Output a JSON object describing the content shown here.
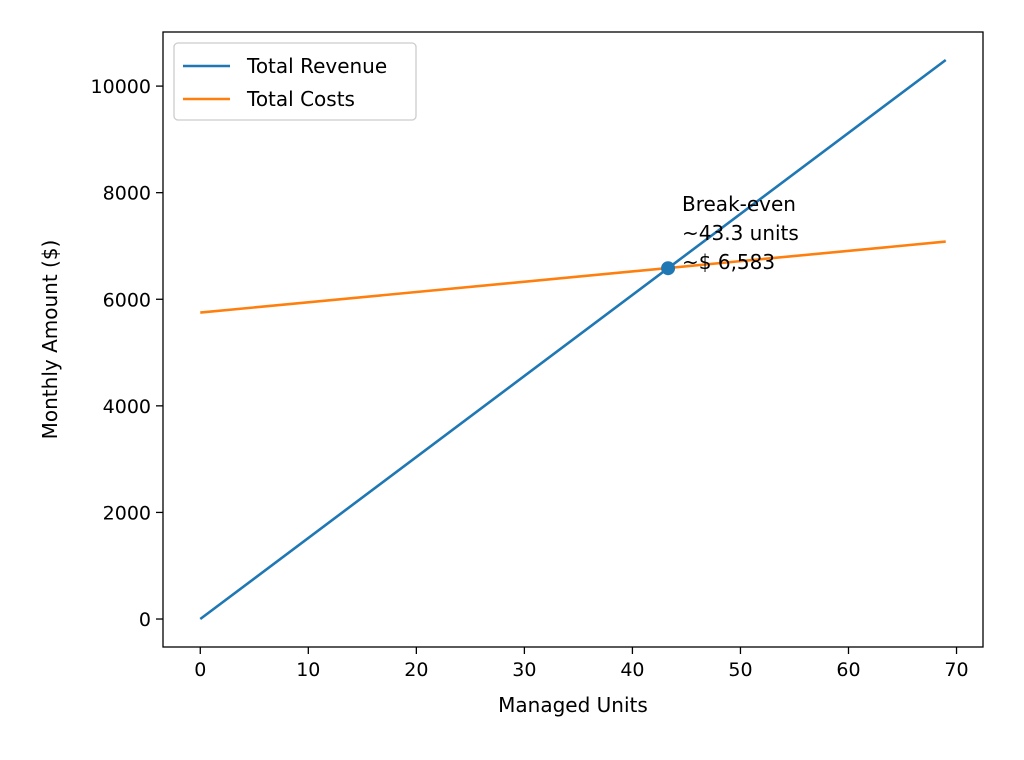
{
  "chart_data": {
    "type": "line",
    "title": "",
    "xlabel": "Managed Units",
    "ylabel": "Monthly Amount ($)",
    "xlim": [
      -3.45,
      72.45
    ],
    "ylim": [
      -525,
      11015
    ],
    "xticks": [
      0,
      10,
      20,
      30,
      40,
      50,
      60,
      70
    ],
    "yticks": [
      0,
      2000,
      4000,
      6000,
      8000,
      10000
    ],
    "grid": false,
    "legend_position": "top-left",
    "series": [
      {
        "name": "Total Revenue",
        "color": "#1f77b4",
        "x": [
          0,
          69
        ],
        "y": [
          0,
          10490
        ]
      },
      {
        "name": "Total Costs",
        "color": "#ff7f0e",
        "x": [
          0,
          69
        ],
        "y": [
          5750,
          7082
        ]
      }
    ],
    "break_even": {
      "x": 43.3,
      "y": 6583,
      "color": "#1f77b4",
      "label_lines": [
        "Break-even",
        "~43.3 units",
        "~$ 6,583"
      ]
    }
  }
}
